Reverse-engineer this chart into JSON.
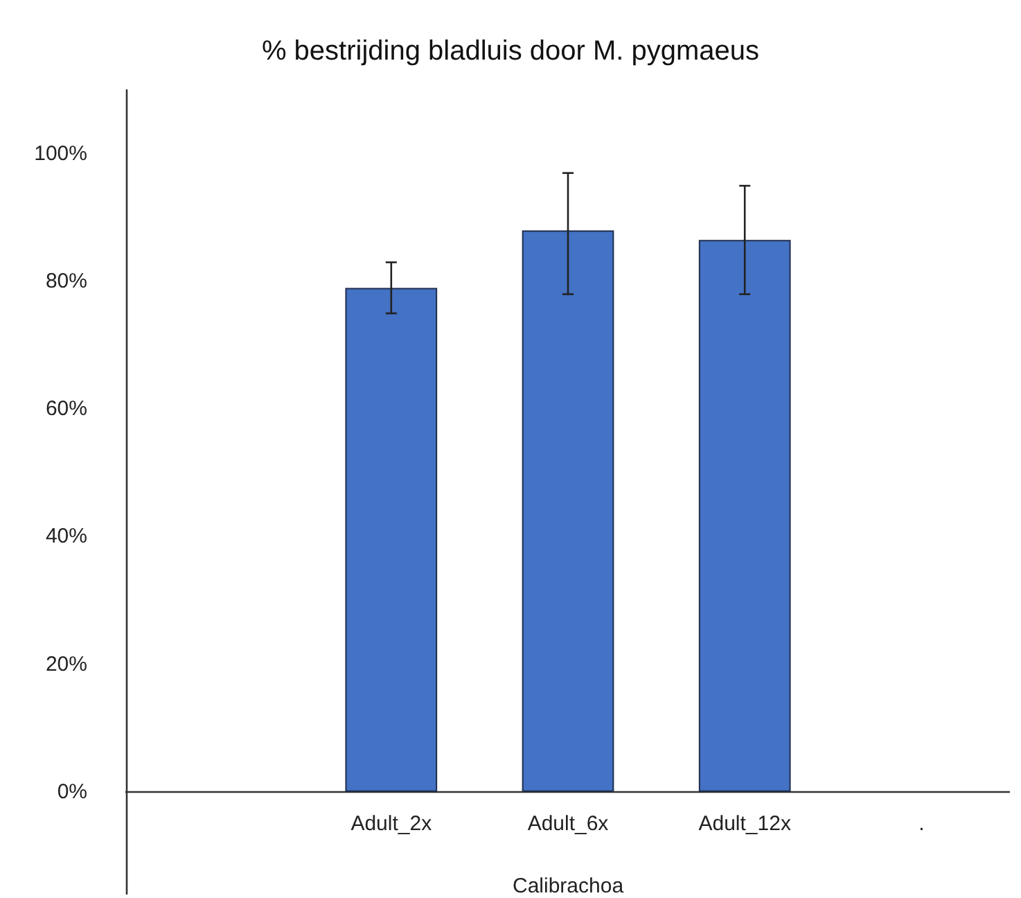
{
  "chart_data": {
    "type": "bar",
    "title": "% bestrijding bladluis door M. pygmaeus",
    "xlabel": "Calibrachoa",
    "categories": [
      null,
      "Adult_2x",
      "Adult_6x",
      "Adult_12x",
      "."
    ],
    "values": [
      null,
      79,
      88,
      86.5,
      null
    ],
    "errors": [
      null,
      [
        75,
        83
      ],
      [
        78,
        97
      ],
      [
        78,
        95
      ],
      null
    ],
    "color": "#4472c4",
    "ylim": [
      -16,
      110
    ],
    "yticks": [
      {
        "value": 0,
        "label": "0%"
      },
      {
        "value": 20,
        "label": "20%"
      },
      {
        "value": 40,
        "label": "40%"
      },
      {
        "value": 60,
        "label": "60%"
      },
      {
        "value": 80,
        "label": "80%"
      },
      {
        "value": 100,
        "label": "100%"
      }
    ]
  }
}
